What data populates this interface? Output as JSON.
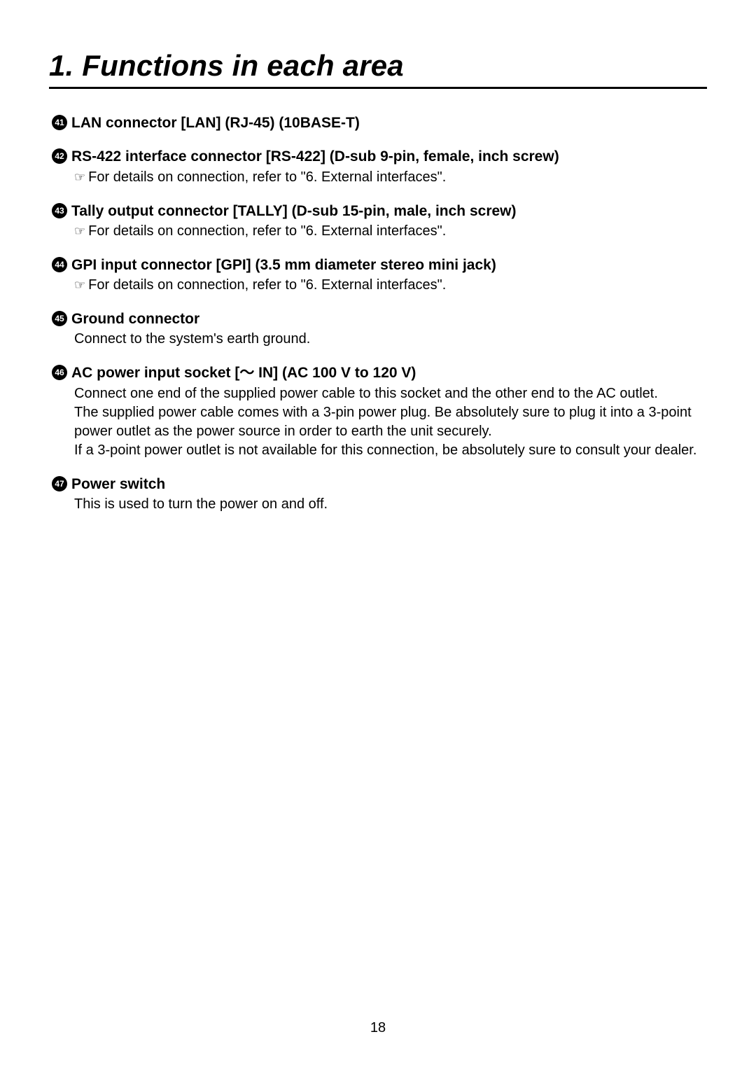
{
  "title": "1. Functions in each area",
  "page_number": "18",
  "pointer_glyph": "☞",
  "tilde_glyph": "～",
  "items": [
    {
      "num": "41",
      "heading": "LAN connector [LAN] (RJ-45) (10BASE-T)",
      "lines": []
    },
    {
      "num": "42",
      "heading": "RS-422 interface connector [RS-422] (D-sub 9-pin, female, inch screw)",
      "lines": [
        {
          "pointer": true,
          "text": "For details on connection, refer to \"6. External interfaces\"."
        }
      ]
    },
    {
      "num": "43",
      "heading": "Tally output connector [TALLY] (D-sub 15-pin, male, inch screw)",
      "lines": [
        {
          "pointer": true,
          "text": "For details on connection, refer to \"6. External interfaces\"."
        }
      ]
    },
    {
      "num": "44",
      "heading": "GPI input connector [GPI] (3.5 mm diameter stereo mini jack)",
      "lines": [
        {
          "pointer": true,
          "text": "For details on connection, refer to \"6. External interfaces\"."
        }
      ]
    },
    {
      "num": "45",
      "heading": "Ground connector",
      "lines": [
        {
          "pointer": false,
          "text": "Connect to the system's earth ground."
        }
      ]
    },
    {
      "num": "46",
      "heading": "AC power input socket [～ IN] (AC 100 V to 120 V)",
      "lines": [
        {
          "pointer": false,
          "text": "Connect one end of the supplied power cable to this socket and the other end to the AC outlet."
        },
        {
          "pointer": false,
          "text": "The supplied power cable comes with a 3-pin power plug. Be absolutely sure to plug it into a 3-point power outlet as the power source in order to earth the unit securely."
        },
        {
          "pointer": false,
          "text": "If a 3-point power outlet is not available for this connection, be absolutely sure to consult your dealer."
        }
      ]
    },
    {
      "num": "47",
      "heading": "Power switch",
      "lines": [
        {
          "pointer": false,
          "text": "This is used to turn the power on and off."
        }
      ]
    }
  ]
}
